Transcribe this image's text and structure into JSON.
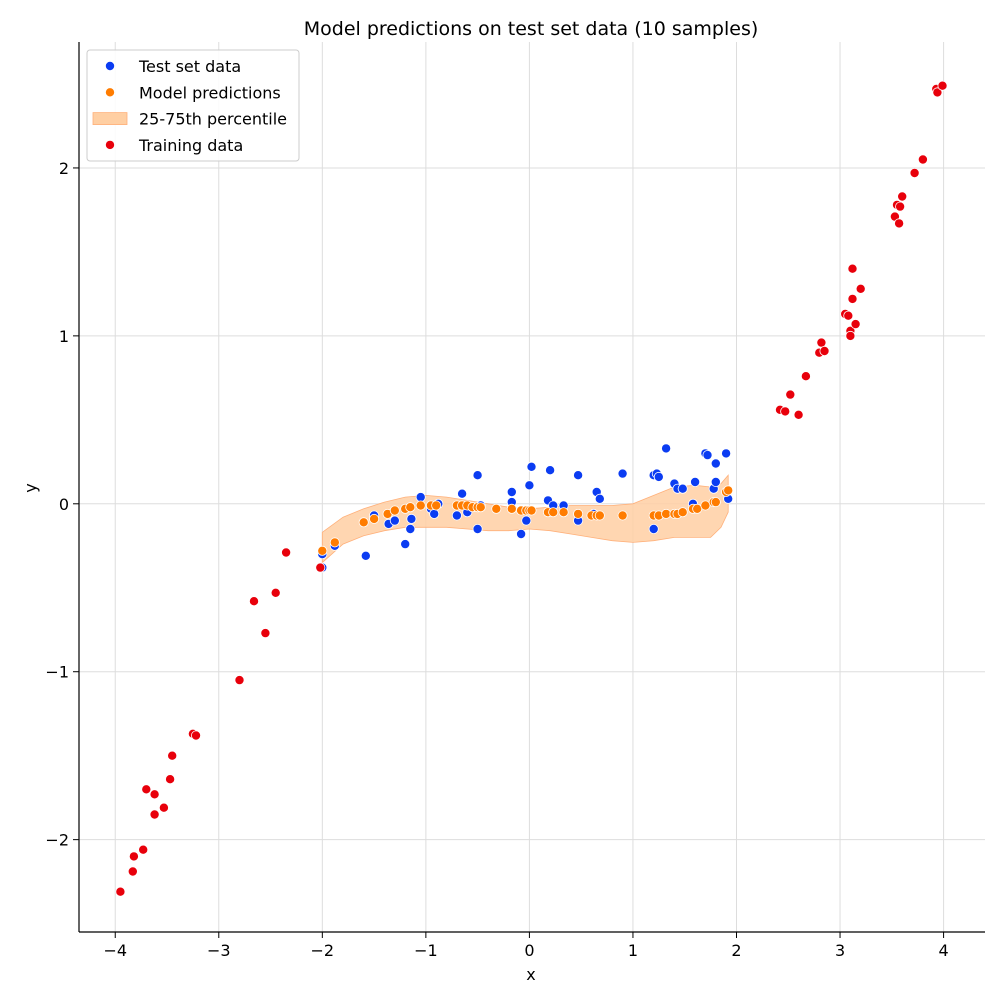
{
  "chart_data": {
    "type": "scatter",
    "title": "Model predictions on test set data (10 samples)",
    "xlabel": "x",
    "ylabel": "y",
    "xlim": [
      -4.35,
      4.4
    ],
    "ylim": [
      -2.55,
      2.75
    ],
    "xticks": [
      -4,
      -3,
      -2,
      -1,
      0,
      1,
      2,
      3,
      4
    ],
    "yticks": [
      -2,
      -1,
      0,
      1,
      2
    ],
    "xtick_labels": [
      "−4",
      "−3",
      "−2",
      "−1",
      "0",
      "1",
      "2",
      "3",
      "4"
    ],
    "ytick_labels": [
      "−2",
      "−1",
      "0",
      "1",
      "2"
    ],
    "grid": true,
    "legend_position": "top-left",
    "legend": [
      {
        "label": "Test set data",
        "kind": "marker",
        "color": "#0b3cf2"
      },
      {
        "label": "Model predictions",
        "kind": "marker",
        "color": "#ff7c00"
      },
      {
        "label": "25-75th percentile",
        "kind": "band",
        "color": "#ffcfa3"
      },
      {
        "label": "Training data",
        "kind": "marker",
        "color": "#e8000b"
      }
    ],
    "band": {
      "name": "25-75th percentile",
      "color": "#ffcfa3",
      "x": [
        -2.0,
        -1.8,
        -1.6,
        -1.4,
        -1.2,
        -1.0,
        -0.8,
        -0.6,
        -0.4,
        -0.2,
        0.0,
        0.2,
        0.4,
        0.6,
        0.8,
        1.0,
        1.2,
        1.4,
        1.6,
        1.75,
        1.85,
        1.92
      ],
      "upper": [
        -0.17,
        -0.08,
        -0.03,
        0.01,
        0.04,
        0.05,
        0.04,
        0.02,
        0.0,
        -0.02,
        -0.03,
        -0.02,
        -0.01,
        -0.01,
        -0.01,
        0.0,
        0.05,
        0.1,
        0.11,
        0.1,
        0.12,
        0.17
      ],
      "lower": [
        -0.35,
        -0.24,
        -0.19,
        -0.16,
        -0.14,
        -0.14,
        -0.14,
        -0.15,
        -0.16,
        -0.16,
        -0.15,
        -0.16,
        -0.18,
        -0.2,
        -0.22,
        -0.23,
        -0.22,
        -0.2,
        -0.2,
        -0.2,
        -0.14,
        -0.05
      ]
    },
    "series": [
      {
        "name": "Test set data",
        "color": "#0b3cf2",
        "points": [
          [
            -2.0,
            -0.38
          ],
          [
            -2.0,
            -0.3
          ],
          [
            -1.88,
            -0.25
          ],
          [
            -1.58,
            -0.31
          ],
          [
            -1.5,
            -0.07
          ],
          [
            -1.36,
            -0.12
          ],
          [
            -1.3,
            -0.1
          ],
          [
            -1.2,
            -0.24
          ],
          [
            -1.15,
            -0.15
          ],
          [
            -1.14,
            -0.09
          ],
          [
            -1.05,
            0.04
          ],
          [
            -0.95,
            -0.03
          ],
          [
            -0.92,
            -0.06
          ],
          [
            -0.88,
            0.0
          ],
          [
            -0.7,
            -0.07
          ],
          [
            -0.65,
            0.06
          ],
          [
            -0.6,
            -0.05
          ],
          [
            -0.5,
            0.17
          ],
          [
            -0.5,
            -0.15
          ],
          [
            -0.47,
            -0.01
          ],
          [
            -0.17,
            0.07
          ],
          [
            -0.17,
            0.01
          ],
          [
            -0.08,
            -0.18
          ],
          [
            -0.03,
            -0.1
          ],
          [
            0.0,
            0.11
          ],
          [
            0.02,
            0.22
          ],
          [
            0.18,
            0.02
          ],
          [
            0.2,
            0.2
          ],
          [
            0.23,
            -0.01
          ],
          [
            0.33,
            -0.01
          ],
          [
            0.47,
            0.17
          ],
          [
            0.47,
            -0.1
          ],
          [
            0.62,
            -0.06
          ],
          [
            0.65,
            0.07
          ],
          [
            0.68,
            0.03
          ],
          [
            0.9,
            0.18
          ],
          [
            1.2,
            0.17
          ],
          [
            1.2,
            -0.15
          ],
          [
            1.23,
            0.18
          ],
          [
            1.25,
            0.16
          ],
          [
            1.32,
            0.33
          ],
          [
            1.4,
            0.12
          ],
          [
            1.43,
            0.09
          ],
          [
            1.48,
            0.09
          ],
          [
            1.58,
            0.0
          ],
          [
            1.6,
            0.13
          ],
          [
            1.7,
            0.3
          ],
          [
            1.72,
            0.29
          ],
          [
            1.78,
            0.09
          ],
          [
            1.8,
            0.24
          ],
          [
            1.8,
            0.13
          ],
          [
            1.9,
            0.3
          ],
          [
            1.92,
            0.03
          ]
        ]
      },
      {
        "name": "Model predictions",
        "color": "#ff7c00",
        "points": [
          [
            -2.0,
            -0.28
          ],
          [
            -1.88,
            -0.23
          ],
          [
            -1.6,
            -0.11
          ],
          [
            -1.5,
            -0.09
          ],
          [
            -1.37,
            -0.06
          ],
          [
            -1.3,
            -0.04
          ],
          [
            -1.2,
            -0.03
          ],
          [
            -1.15,
            -0.02
          ],
          [
            -1.05,
            -0.01
          ],
          [
            -0.95,
            -0.01
          ],
          [
            -0.9,
            -0.01
          ],
          [
            -0.7,
            -0.01
          ],
          [
            -0.65,
            -0.01
          ],
          [
            -0.6,
            -0.01
          ],
          [
            -0.55,
            -0.02
          ],
          [
            -0.5,
            -0.02
          ],
          [
            -0.47,
            -0.02
          ],
          [
            -0.32,
            -0.03
          ],
          [
            -0.17,
            -0.03
          ],
          [
            -0.08,
            -0.04
          ],
          [
            -0.03,
            -0.04
          ],
          [
            0.0,
            -0.04
          ],
          [
            0.02,
            -0.04
          ],
          [
            0.18,
            -0.05
          ],
          [
            0.23,
            -0.05
          ],
          [
            0.33,
            -0.05
          ],
          [
            0.47,
            -0.06
          ],
          [
            0.6,
            -0.07
          ],
          [
            0.65,
            -0.07
          ],
          [
            0.68,
            -0.07
          ],
          [
            0.9,
            -0.07
          ],
          [
            1.2,
            -0.07
          ],
          [
            1.25,
            -0.07
          ],
          [
            1.32,
            -0.06
          ],
          [
            1.4,
            -0.06
          ],
          [
            1.43,
            -0.06
          ],
          [
            1.48,
            -0.05
          ],
          [
            1.58,
            -0.03
          ],
          [
            1.62,
            -0.03
          ],
          [
            1.7,
            -0.01
          ],
          [
            1.78,
            0.01
          ],
          [
            1.8,
            0.01
          ],
          [
            1.9,
            0.07
          ],
          [
            1.92,
            0.08
          ]
        ]
      },
      {
        "name": "Training data",
        "color": "#e8000b",
        "points": [
          [
            -3.95,
            -2.31
          ],
          [
            -3.83,
            -2.19
          ],
          [
            -3.82,
            -2.1
          ],
          [
            -3.73,
            -2.06
          ],
          [
            -3.7,
            -1.7
          ],
          [
            -3.62,
            -1.85
          ],
          [
            -3.62,
            -1.73
          ],
          [
            -3.53,
            -1.81
          ],
          [
            -3.47,
            -1.64
          ],
          [
            -3.45,
            -1.5
          ],
          [
            -3.25,
            -1.37
          ],
          [
            -3.22,
            -1.38
          ],
          [
            -2.8,
            -1.05
          ],
          [
            -2.66,
            -0.58
          ],
          [
            -2.55,
            -0.77
          ],
          [
            -2.45,
            -0.53
          ],
          [
            -2.35,
            -0.29
          ],
          [
            -2.02,
            -0.38
          ],
          [
            2.42,
            0.56
          ],
          [
            2.47,
            0.55
          ],
          [
            2.52,
            0.65
          ],
          [
            2.6,
            0.53
          ],
          [
            2.67,
            0.76
          ],
          [
            2.8,
            0.9
          ],
          [
            2.82,
            0.96
          ],
          [
            2.85,
            0.91
          ],
          [
            3.05,
            1.13
          ],
          [
            3.08,
            1.12
          ],
          [
            3.1,
            1.03
          ],
          [
            3.1,
            1.0
          ],
          [
            3.12,
            1.4
          ],
          [
            3.12,
            1.22
          ],
          [
            3.15,
            1.07
          ],
          [
            3.2,
            1.28
          ],
          [
            3.53,
            1.71
          ],
          [
            3.55,
            1.78
          ],
          [
            3.57,
            1.67
          ],
          [
            3.58,
            1.77
          ],
          [
            3.6,
            1.83
          ],
          [
            3.72,
            1.97
          ],
          [
            3.8,
            2.05
          ],
          [
            3.93,
            2.47
          ],
          [
            3.94,
            2.45
          ],
          [
            3.99,
            2.49
          ]
        ]
      }
    ]
  }
}
